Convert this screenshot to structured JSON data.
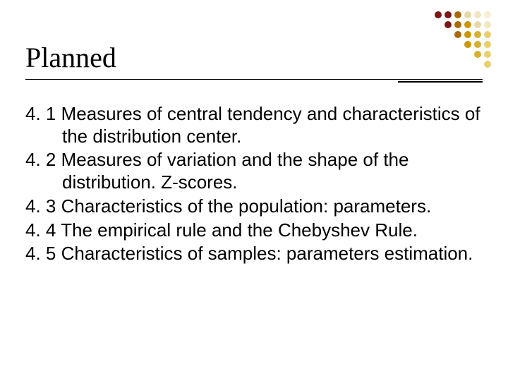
{
  "title": "Planned",
  "items": [
    "4. 1 Measures of central tendency and characteristics of the distribution center.",
    "4. 2 Measures of variation and the shape of the distribution. Z-scores.",
    "4. 3 Characteristics of the population: parameters.",
    "4. 4 The empirical rule and the Chebyshev Rule.",
    "4. 5 Characteristics of samples: parameters estimation."
  ],
  "dot_grid": {
    "rows": 6,
    "cols": 6,
    "base_colors_by_col": [
      "#7a1818",
      "#7a1818",
      "#a86b00",
      "#c99700",
      "#d8b030",
      "#e8d070"
    ],
    "top_right_fade": [
      "#e8d8a8",
      "#f0e6c0",
      "#f6efd6"
    ]
  },
  "colors": {
    "background": "#ffffff",
    "text": "#000000",
    "rule": "#000000"
  }
}
